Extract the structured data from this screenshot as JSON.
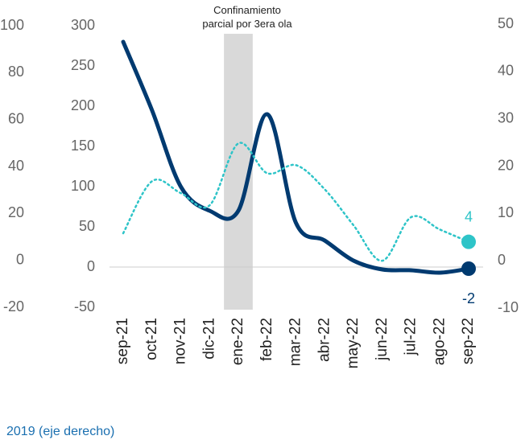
{
  "chart_data": {
    "type": "line",
    "annotation": "Confinamiento parcial por 3era ola",
    "legend_text": "2019 (eje derecho)",
    "categories": [
      "sep-21",
      "oct-21",
      "nov-21",
      "dic-21",
      "ene-22",
      "feb-22",
      "mar-22",
      "abr-22",
      "may-22",
      "jun-22",
      "jul-22",
      "ago-22",
      "sep-22"
    ],
    "series": [
      {
        "color": "#003a70",
        "axis": "y",
        "values": [
          280,
          195,
          100,
          70,
          70,
          190,
          55,
          33,
          8,
          -3,
          -4,
          -7,
          -2
        ]
      },
      {
        "color": "#2ec4c8",
        "axis": "y2",
        "values": [
          5.8,
          16.8,
          14.3,
          11.7,
          24.8,
          18.5,
          20.2,
          15.1,
          7.5,
          0,
          9.2,
          6.6,
          4
        ]
      }
    ],
    "shaded_category": 4,
    "ylim": [
      -50,
      300
    ],
    "yticks": [
      300,
      250,
      200,
      150,
      100,
      50,
      0,
      -50
    ],
    "y2lim": [
      -10,
      50
    ],
    "y2ticks": [
      50,
      40,
      30,
      20,
      10,
      0,
      -10
    ],
    "y3lim": [
      -20,
      100
    ],
    "y3ticks": [
      100,
      80,
      60,
      40,
      20,
      0,
      -20
    ]
  }
}
